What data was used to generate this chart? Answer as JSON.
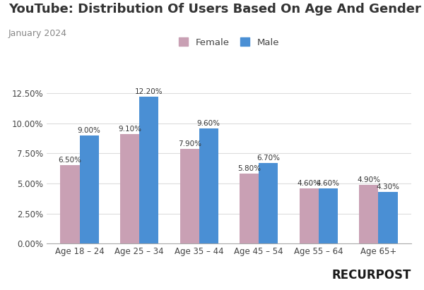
{
  "title": "YouTube: Distribution Of Users Based On Age And Gender",
  "subtitle": "January 2024",
  "categories": [
    "Age 18 – 24",
    "Age 25 – 34",
    "Age 35 – 44",
    "Age 45 – 54",
    "Age 55 – 64",
    "Age 65+"
  ],
  "female_values": [
    6.5,
    9.1,
    7.9,
    5.8,
    4.6,
    4.9
  ],
  "male_values": [
    9.0,
    12.2,
    9.6,
    6.7,
    4.6,
    4.3
  ],
  "female_color": "#c9a0b4",
  "male_color": "#4a8fd4",
  "background_color": "#ffffff",
  "ylim": [
    0,
    13.5
  ],
  "yticks": [
    0.0,
    2.5,
    5.0,
    7.5,
    10.0,
    12.5
  ],
  "bar_width": 0.32,
  "legend_labels": [
    "Female",
    "Male"
  ],
  "title_fontsize": 13,
  "subtitle_fontsize": 9,
  "tick_fontsize": 8.5,
  "label_fontsize": 7.5,
  "logo_text_left": "RECURP",
  "logo_text_right": "ST",
  "logo_fontsize": 12
}
